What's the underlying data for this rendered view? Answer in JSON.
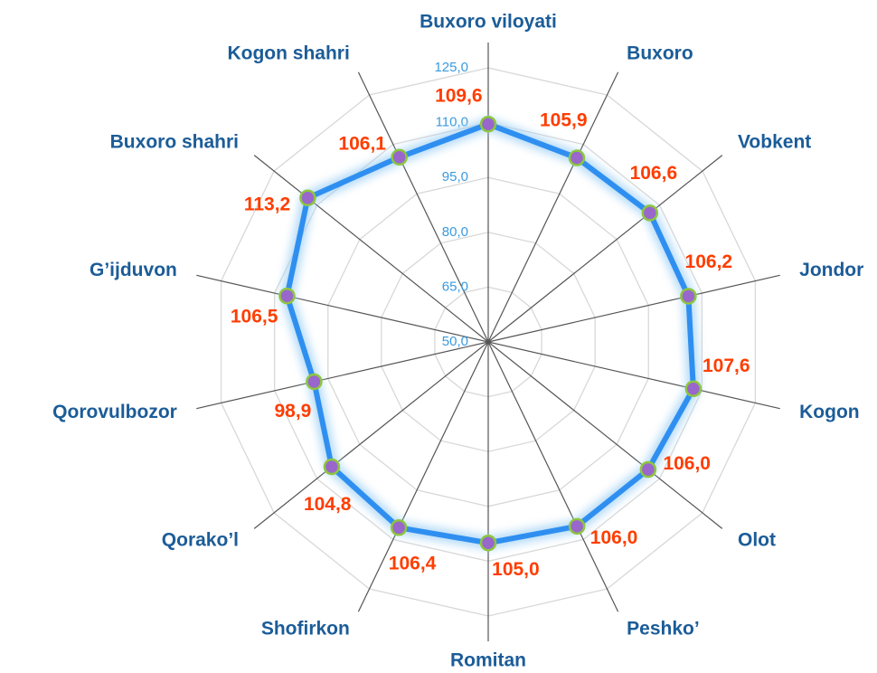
{
  "chart_data": {
    "type": "radar",
    "categories": [
      "Buxoro viloyati",
      "Buxoro",
      "Vobkent",
      "Jondor",
      "Kogon",
      "Olot",
      "Peshko’",
      "Romitan",
      "Shofirkon",
      "Qorako’l",
      "Qorovulbozor",
      "G’ijduvon",
      "Buxoro shahri",
      "Kogon shahri"
    ],
    "values": [
      109.6,
      105.9,
      106.6,
      106.2,
      107.6,
      106.0,
      106.0,
      105.0,
      106.4,
      104.8,
      98.9,
      106.5,
      113.2,
      106.1
    ],
    "value_labels": [
      "109,6",
      "105,9",
      "106,6",
      "106,2",
      "107,6",
      "106,0",
      "106,0",
      "105,0",
      "106,4",
      "104,8",
      "98,9",
      "106,5",
      "113,2",
      "106,1"
    ],
    "color": "#2f8ff0",
    "marker_color": "#9966cc",
    "ylim": [
      50,
      125
    ],
    "yticks": [
      {
        "value": 50,
        "label": "50,0"
      },
      {
        "value": 65,
        "label": "65,0"
      },
      {
        "value": 80,
        "label": "80,0"
      },
      {
        "value": 95,
        "label": "95,0"
      },
      {
        "value": 110,
        "label": "110,0"
      },
      {
        "value": 125,
        "label": "125,0"
      }
    ],
    "grid": true
  }
}
